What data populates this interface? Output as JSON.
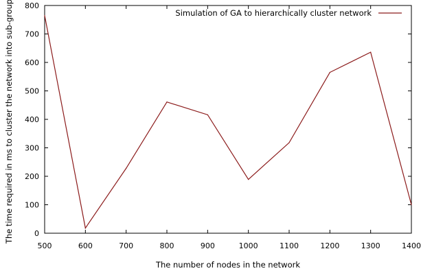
{
  "chart_data": {
    "type": "line",
    "xlabel": "The number of nodes in the network",
    "ylabel": "The time required in ms to cluster the network into sub-groups",
    "xlim": [
      500,
      1400
    ],
    "ylim": [
      0,
      800
    ],
    "xticks": [
      500,
      600,
      700,
      800,
      900,
      1000,
      1100,
      1200,
      1300,
      1400
    ],
    "yticks": [
      0,
      100,
      200,
      300,
      400,
      500,
      600,
      700,
      800
    ],
    "grid": false,
    "legend_position": "top-right",
    "series": [
      {
        "name": "Simulation of GA to hierarchically cluster network",
        "color": "#8b1a1a",
        "x": [
          500,
          600,
          700,
          800,
          900,
          1000,
          1100,
          1200,
          1300,
          1400
        ],
        "y": [
          765,
          18,
          228,
          461,
          416,
          189,
          318,
          565,
          636,
          100
        ]
      }
    ]
  }
}
